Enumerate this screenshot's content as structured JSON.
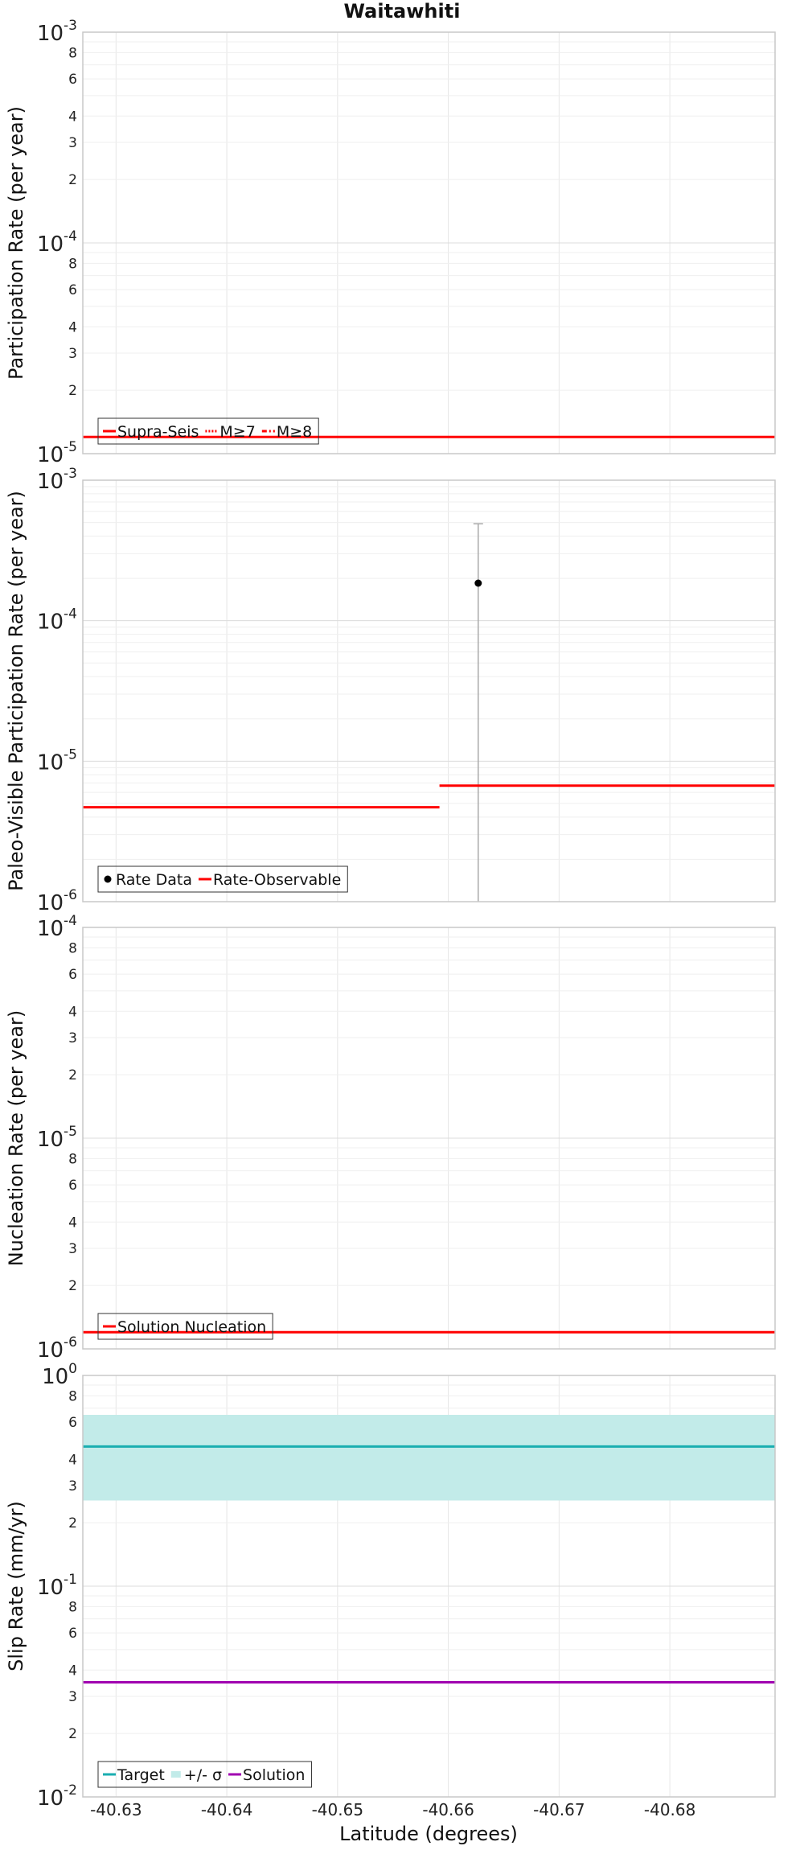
{
  "title": "Waitawhiti",
  "xlabel": "Latitude (degrees)",
  "x_ticks": [
    "-40.63",
    "-40.64",
    "-40.65",
    "-40.66",
    "-40.67",
    "-40.68"
  ],
  "chart_data": [
    {
      "type": "line",
      "ylabel": "Participation Rate (per year)",
      "yscale": "log",
      "xlim": [
        -40.627,
        -40.6895
      ],
      "ylim": [
        1e-05,
        0.001
      ],
      "major_ticks": [
        {
          "base": "10",
          "exp": "-5"
        },
        {
          "base": "10",
          "exp": "-4"
        },
        {
          "base": "10",
          "exp": "-3"
        }
      ],
      "minor_ticks": [
        "2",
        "3",
        "4",
        "6",
        "8"
      ],
      "legend": [
        "Supra-Seis",
        "M≥7",
        "M≥8"
      ],
      "legend_position": "lower-left",
      "series": [
        {
          "name": "Supra-Seis",
          "color": "#ff0000",
          "style": "solid",
          "segments": [
            {
              "x": [
                -40.627,
                -40.6895
              ],
              "y": 1.2e-05
            }
          ]
        },
        {
          "name": "M≥7",
          "color": "#ff0000",
          "style": "dotted",
          "segments": []
        },
        {
          "name": "M≥8",
          "color": "#ff0000",
          "style": "dashdot",
          "segments": []
        }
      ]
    },
    {
      "type": "line",
      "ylabel": "Paleo-Visible Participation Rate (per year)",
      "yscale": "log",
      "xlim": [
        -40.627,
        -40.6895
      ],
      "ylim": [
        1e-06,
        0.001
      ],
      "major_ticks": [
        {
          "base": "10",
          "exp": "-6"
        },
        {
          "base": "10",
          "exp": "-5"
        },
        {
          "base": "10",
          "exp": "-4"
        },
        {
          "base": "10",
          "exp": "-3"
        }
      ],
      "minor_ticks": [],
      "legend": [
        "Rate Data",
        "Rate-Observable"
      ],
      "legend_position": "lower-left",
      "series": [
        {
          "name": "Rate-Observable",
          "color": "#ff0000",
          "style": "solid",
          "segments": [
            {
              "x": [
                -40.627,
                -40.6592
              ],
              "y": 4.7e-06
            },
            {
              "x": [
                -40.6592,
                -40.6895
              ],
              "y": 6.7e-06
            }
          ]
        }
      ],
      "points": [
        {
          "name": "Rate Data",
          "x": -40.6627,
          "y": 0.000185,
          "err_low": 1e-06,
          "err_high": 0.00049
        }
      ]
    },
    {
      "type": "line",
      "ylabel": "Nucleation Rate (per year)",
      "yscale": "log",
      "xlim": [
        -40.627,
        -40.6895
      ],
      "ylim": [
        1e-06,
        0.0001
      ],
      "major_ticks": [
        {
          "base": "10",
          "exp": "-6"
        },
        {
          "base": "10",
          "exp": "-5"
        },
        {
          "base": "10",
          "exp": "-4"
        }
      ],
      "minor_ticks": [
        "2",
        "3",
        "4",
        "6",
        "8"
      ],
      "legend": [
        "Solution Nucleation"
      ],
      "legend_position": "lower-left",
      "series": [
        {
          "name": "Solution Nucleation",
          "color": "#ff0000",
          "style": "solid",
          "segments": [
            {
              "x": [
                -40.627,
                -40.6895
              ],
              "y": 1.2e-06
            }
          ]
        }
      ]
    },
    {
      "type": "line",
      "ylabel": "Slip Rate (mm/yr)",
      "yscale": "log",
      "xlim": [
        -40.627,
        -40.6895
      ],
      "ylim": [
        0.01,
        1
      ],
      "major_ticks": [
        {
          "base": "10",
          "exp": "-2"
        },
        {
          "base": "10",
          "exp": "-1"
        },
        {
          "base": "10",
          "exp": "0"
        }
      ],
      "minor_ticks": [
        "2",
        "3",
        "4",
        "6",
        "8"
      ],
      "legend": [
        "Target",
        "+/- σ",
        "Solution"
      ],
      "legend_position": "lower-left",
      "band": {
        "name": "+/- σ",
        "color": "#c2ebe9",
        "low": 0.255,
        "high": 0.65
      },
      "series": [
        {
          "name": "Target",
          "color": "#1aaeb0",
          "style": "solid",
          "segments": [
            {
              "x": [
                -40.627,
                -40.6895
              ],
              "y": 0.46
            }
          ]
        },
        {
          "name": "Solution",
          "color": "#a000b0",
          "style": "solid",
          "segments": [
            {
              "x": [
                -40.627,
                -40.6895
              ],
              "y": 0.035
            }
          ]
        }
      ]
    }
  ]
}
